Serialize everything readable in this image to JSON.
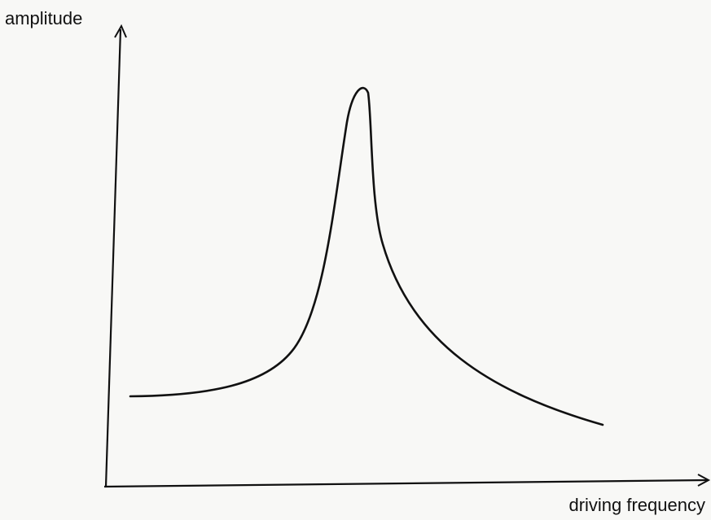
{
  "axes": {
    "y_label": "amplitude",
    "x_label": "driving frequency"
  }
}
